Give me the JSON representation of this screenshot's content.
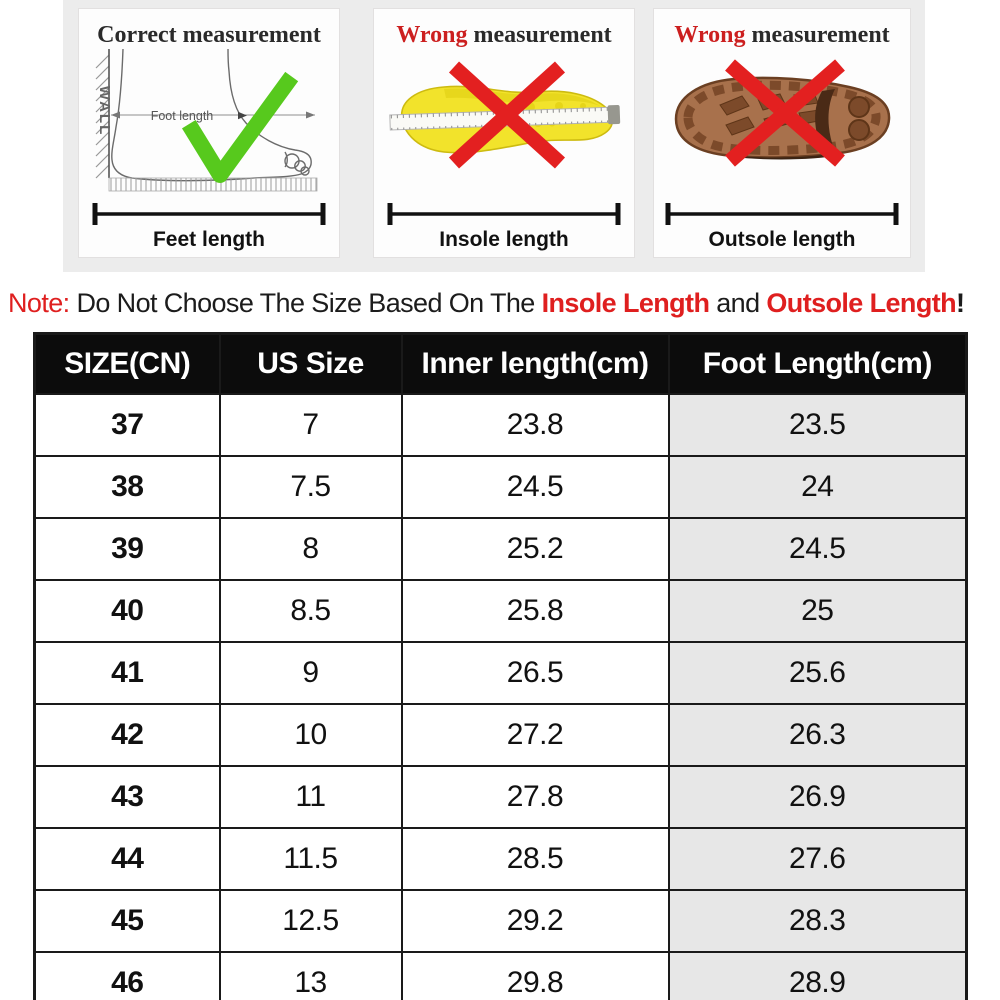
{
  "panels": [
    {
      "title_red": "",
      "title_black": "Correct measurement",
      "wall_label": "WALL",
      "measure_label": "Foot length",
      "bottom_label": "Feet length",
      "icon": "check-icon"
    },
    {
      "title_red": "Wrong",
      "title_black": " measurement",
      "bottom_label": "Insole length",
      "icon": "cross-icon"
    },
    {
      "title_red": "Wrong",
      "title_black": " measurement",
      "bottom_label": "Outsole length",
      "icon": "cross-icon"
    }
  ],
  "note": {
    "label": "Note:",
    "text1": " Do Not Choose The Size Based On The ",
    "red1": "Insole Length",
    "text2": " and ",
    "red2": "Outsole Length",
    "text3": "!"
  },
  "table": {
    "headers": [
      "SIZE(CN)",
      "US Size",
      "Inner length(cm)",
      "Foot Length(cm)"
    ],
    "rows": [
      [
        "37",
        "7",
        "23.8",
        "23.5"
      ],
      [
        "38",
        "7.5",
        "24.5",
        "24"
      ],
      [
        "39",
        "8",
        "25.2",
        "24.5"
      ],
      [
        "40",
        "8.5",
        "25.8",
        "25"
      ],
      [
        "41",
        "9",
        "26.5",
        "25.6"
      ],
      [
        "42",
        "10",
        "27.2",
        "26.3"
      ],
      [
        "43",
        "11",
        "27.8",
        "26.9"
      ],
      [
        "44",
        "11.5",
        "28.5",
        "27.6"
      ],
      [
        "45",
        "12.5",
        "29.2",
        "28.3"
      ],
      [
        "46",
        "13",
        "29.8",
        "28.9"
      ]
    ]
  },
  "colors": {
    "accent_red": "#df1f1f",
    "check_green": "#57c91d",
    "insole_yellow": "#f2e32b",
    "outsole_brown": "#a8714c",
    "header_bg": "#0c0c0c",
    "foot_length_col_bg": "#e7e7e7",
    "strip_bg": "#ececec"
  }
}
